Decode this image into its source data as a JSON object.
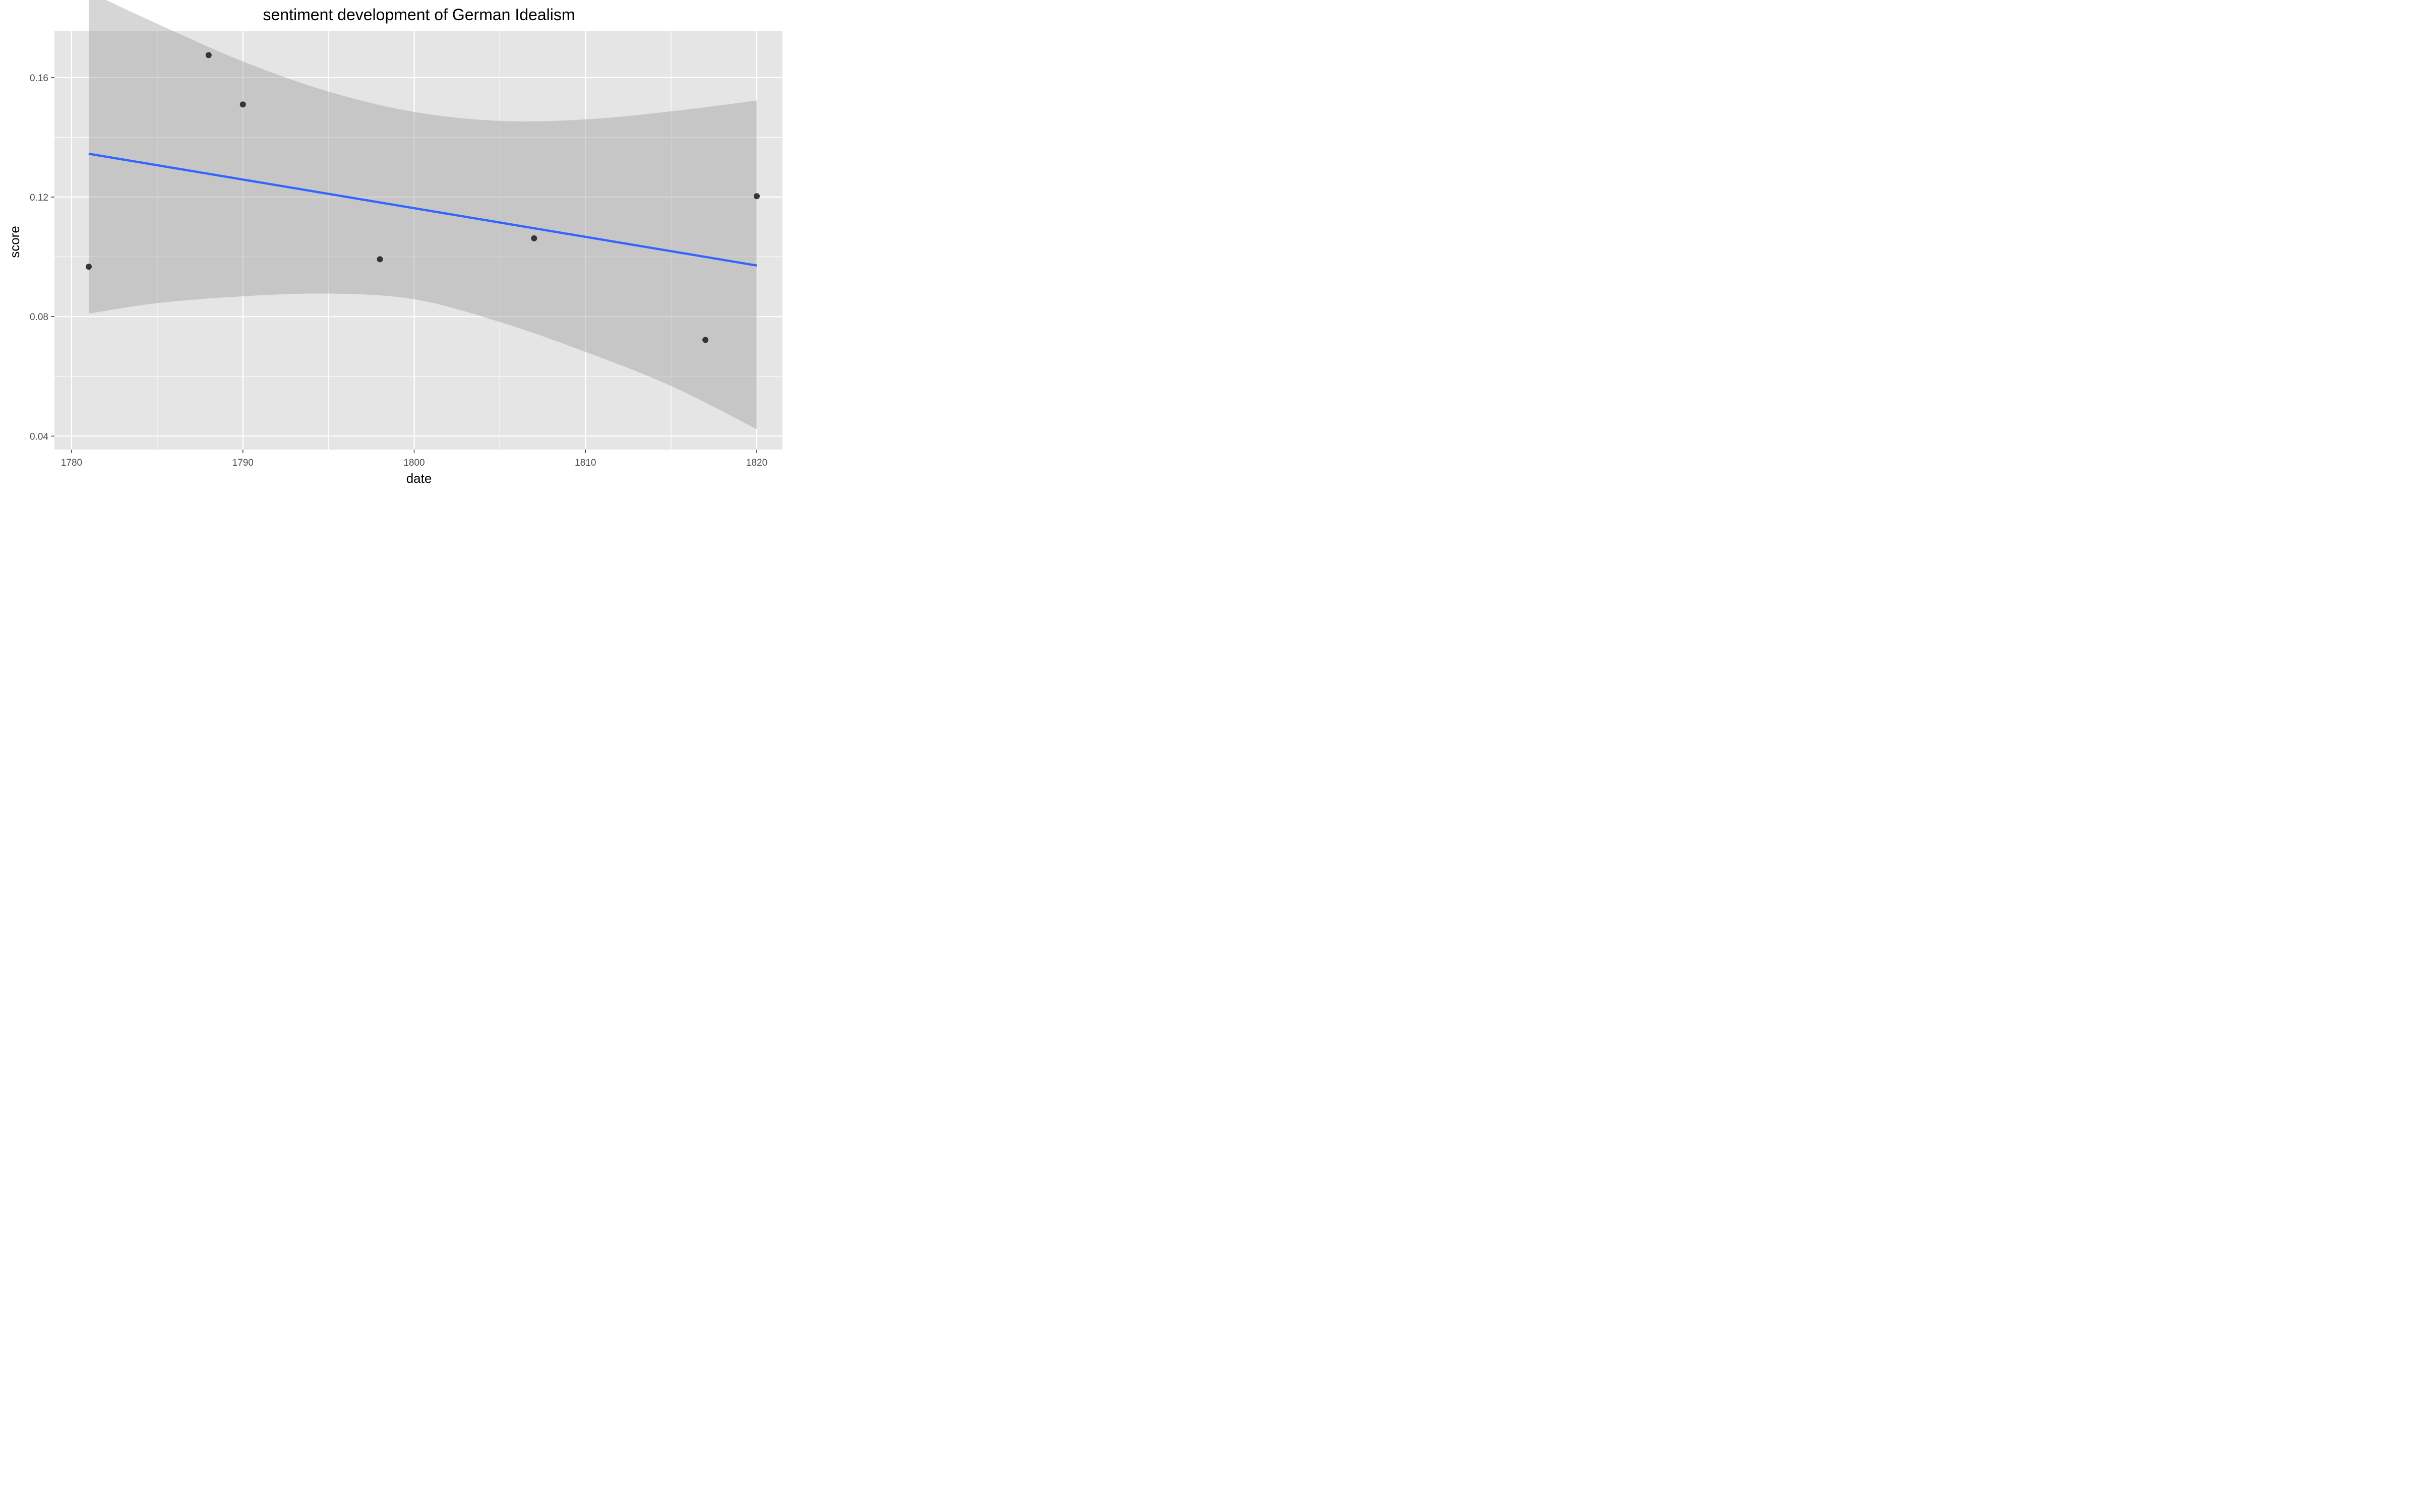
{
  "chart_data": {
    "type": "scatter",
    "title": "sentiment development of German Idealism",
    "xlabel": "date",
    "ylabel": "score",
    "xlim": [
      1779,
      1821.5
    ],
    "ylim": [
      0.0355,
      0.1755
    ],
    "x_ticks": [
      {
        "value": 1780,
        "label": "1780"
      },
      {
        "value": 1790,
        "label": "1790"
      },
      {
        "value": 1800,
        "label": "1800"
      },
      {
        "value": 1810,
        "label": "1810"
      },
      {
        "value": 1820,
        "label": "1820"
      }
    ],
    "y_ticks": [
      {
        "value": 0.04,
        "label": "0.04"
      },
      {
        "value": 0.08,
        "label": "0.08"
      },
      {
        "value": 0.12,
        "label": "0.12"
      },
      {
        "value": 0.16,
        "label": "0.16"
      }
    ],
    "points": [
      {
        "x": 1781,
        "y": 0.0967
      },
      {
        "x": 1788,
        "y": 0.1675
      },
      {
        "x": 1790,
        "y": 0.151
      },
      {
        "x": 1798,
        "y": 0.0992
      },
      {
        "x": 1807,
        "y": 0.1062
      },
      {
        "x": 1817,
        "y": 0.0722
      },
      {
        "x": 1820,
        "y": 0.1203
      }
    ],
    "trend_line": {
      "method": "linear",
      "x": [
        1781,
        1820
      ],
      "y": [
        0.1345,
        0.0971
      ],
      "color": "#3366ff"
    },
    "confidence_band": {
      "color": "#999999",
      "x": [
        1781,
        1785,
        1790,
        1795,
        1800,
        1805,
        1810,
        1815,
        1820
      ],
      "upper": [
        0.1887,
        0.178,
        0.1654,
        0.1553,
        0.1485,
        0.1455,
        0.146,
        0.1487,
        0.1523
      ],
      "lower": [
        0.081,
        0.0845,
        0.0868,
        0.0877,
        0.0858,
        0.0782,
        0.0682,
        0.0568,
        0.0423
      ]
    },
    "grid": true,
    "panel_color": "#e5e5e5",
    "point_color": "#1a1a1a"
  }
}
